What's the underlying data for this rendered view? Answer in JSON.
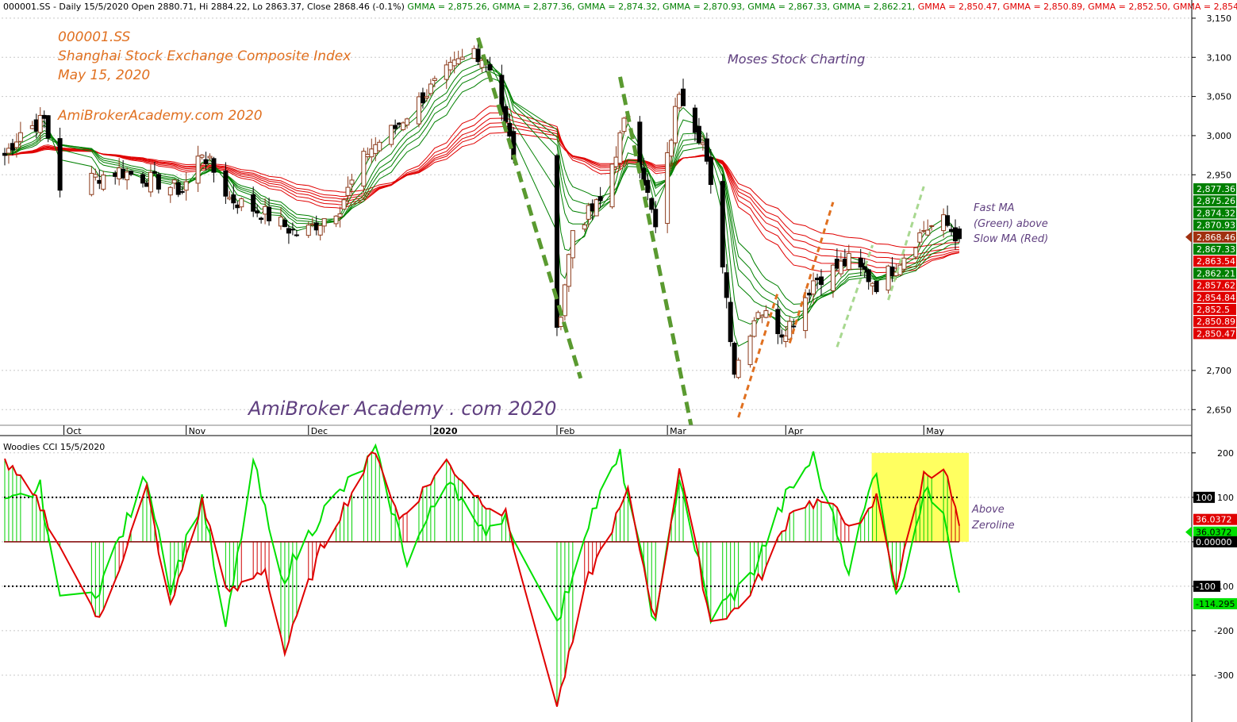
{
  "header": {
    "symbol_line": "000001.SS - Daily 15/5/2020 Open 2880.71, Hi 2884.22, Lo 2863.37, Close 2868.46 (-0.1%)",
    "gmma_items": [
      {
        "text": "GMMA = 2,875.26,",
        "color": "#008000"
      },
      {
        "text": "GMMA = 2,877.36,",
        "color": "#008000"
      },
      {
        "text": "GMMA = 2,874.32,",
        "color": "#008000"
      },
      {
        "text": "GMMA = 2,870.93,",
        "color": "#008000"
      },
      {
        "text": "GMMA = 2,867.33,",
        "color": "#008000"
      },
      {
        "text": "GMMA = 2,862.21,",
        "color": "#008000"
      },
      {
        "text": "GMMA = 2,850.47,",
        "color": "#e00000"
      },
      {
        "text": "GMMA = 2,850.89,",
        "color": "#e00000"
      },
      {
        "text": "GMMA = 2,852.50,",
        "color": "#e00000"
      },
      {
        "text": "GMMA = 2,854",
        "color": "#e00000"
      }
    ],
    "cci_title": "Woodies CCI  15/5/2020"
  },
  "annotations": {
    "ticker": "000001.SS",
    "index_name": "Shanghai Stock Exchange Composite Index",
    "date": "May 15, 2020",
    "site": "AmiBrokerAcademy.com  2020",
    "moses": "Moses Stock Charting",
    "watermark": "AmiBroker Academy . com  2020",
    "fast_ma_lines": [
      "Fast MA",
      "(Green) above",
      "Slow MA (Red)"
    ],
    "zeroline_lines": [
      "Above",
      "Zeroline"
    ]
  },
  "colors": {
    "up_candle": "#8b3a1a",
    "down_candle": "#000000",
    "fast_ma": "#008000",
    "slow_ma": "#e00000",
    "cci_line": "#e00000",
    "turbo_line": "#00e000",
    "annotation_orange": "#e07020",
    "annotation_purple": "#604080",
    "highlight": "#ffff44"
  },
  "chart_data": [
    {
      "type": "candlestick",
      "title": "000001.SS - Daily 15/5/2020",
      "x_labels": [
        "Oct",
        "Nov",
        "Dec",
        "2020",
        "Feb",
        "Mar",
        "Apr",
        "May"
      ],
      "y_ticks": [
        3150,
        3100,
        3050,
        3000,
        2950,
        2700,
        2650
      ],
      "ylim": [
        2630,
        3155
      ],
      "grid": true,
      "last_bar": {
        "open": 2880.71,
        "high": 2884.22,
        "low": 2863.37,
        "close": 2868.46
      },
      "price_tags": [
        {
          "label": "2,877.36",
          "value": 2877.36,
          "color": "#008000"
        },
        {
          "label": "2,875.26",
          "value": 2875.26,
          "color": "#008000"
        },
        {
          "label": "2,874.32",
          "value": 2874.32,
          "color": "#008000"
        },
        {
          "label": "2,870.93",
          "value": 2870.93,
          "color": "#008000"
        },
        {
          "label": "2,868.46",
          "value": 2868.46,
          "color": "#a03010"
        },
        {
          "label": "2,867.33",
          "value": 2867.33,
          "color": "#008000"
        },
        {
          "label": "2,863.54",
          "value": 2863.54,
          "color": "#e00000"
        },
        {
          "label": "2,862.21",
          "value": 2862.21,
          "color": "#008000"
        },
        {
          "label": "2,857.62",
          "value": 2857.62,
          "color": "#e00000"
        },
        {
          "label": "2,854.84",
          "value": 2854.84,
          "color": "#e00000"
        },
        {
          "label": "2,852.5",
          "value": 2852.5,
          "color": "#e00000"
        },
        {
          "label": "2,850.89",
          "value": 2850.89,
          "color": "#e00000"
        },
        {
          "label": "2,850.47",
          "value": 2850.47,
          "color": "#e00000"
        }
      ],
      "close_path": [
        [
          "2019-09-16",
          2975
        ],
        [
          "2019-09-20",
          3005
        ],
        [
          "2019-09-26",
          3020
        ],
        [
          "2019-09-30",
          2935
        ],
        [
          "2019-10-15",
          2955
        ],
        [
          "2019-10-22",
          2945
        ],
        [
          "2019-10-31",
          2930
        ],
        [
          "2019-11-05",
          2980
        ],
        [
          "2019-11-12",
          2920
        ],
        [
          "2019-11-21",
          2900
        ],
        [
          "2019-11-29",
          2875
        ],
        [
          "2019-12-02",
          2880
        ],
        [
          "2019-12-10",
          2910
        ],
        [
          "2019-12-17",
          2980
        ],
        [
          "2019-12-24",
          3010
        ],
        [
          "2019-12-31",
          3050
        ],
        [
          "2020-01-06",
          3080
        ],
        [
          "2020-01-13",
          3110
        ],
        [
          "2020-01-17",
          3090
        ],
        [
          "2020-01-23",
          2975
        ],
        [
          "2020-02-03",
          2745
        ],
        [
          "2020-02-07",
          2880
        ],
        [
          "2020-02-14",
          2915
        ],
        [
          "2020-02-21",
          3030
        ],
        [
          "2020-02-28",
          2880
        ],
        [
          "2020-03-05",
          3060
        ],
        [
          "2020-03-11",
          2990
        ],
        [
          "2020-03-16",
          2840
        ],
        [
          "2020-03-19",
          2700
        ],
        [
          "2020-03-25",
          2780
        ],
        [
          "2020-03-31",
          2750
        ],
        [
          "2020-04-03",
          2765
        ],
        [
          "2020-04-08",
          2815
        ],
        [
          "2020-04-17",
          2840
        ],
        [
          "2020-04-24",
          2810
        ],
        [
          "2020-04-29",
          2835
        ],
        [
          "2020-05-06",
          2880
        ],
        [
          "2020-05-11",
          2890
        ],
        [
          "2020-05-15",
          2868.46
        ]
      ],
      "series": [
        {
          "name": "GMMA",
          "group": "short",
          "color": "#008000",
          "last": [
            2875.26,
            2877.36,
            2874.32,
            2870.93,
            2867.33,
            2862.21
          ]
        },
        {
          "name": "GMMA",
          "group": "long",
          "color": "#e00000",
          "last": [
            2850.47,
            2850.89,
            2852.5,
            2854.84,
            2857.62,
            2863.54
          ]
        }
      ]
    },
    {
      "type": "line",
      "title": "Woodies CCI  15/5/2020",
      "y_ticks": [
        200,
        100,
        0,
        -100,
        -200,
        -300
      ],
      "ylim": [
        -400,
        230
      ],
      "reference_lines": [
        100,
        0,
        -100
      ],
      "value_tags": [
        {
          "label": "100",
          "value": 100,
          "color": "#000000"
        },
        {
          "label": "36.0372",
          "value": 36.0372,
          "color": "#e00000"
        },
        {
          "label": "36.0372",
          "value": 36.0372,
          "color": "#00e000"
        },
        {
          "label": "0.00000",
          "value": 0,
          "color": "#000000"
        },
        {
          "label": "-100",
          "value": -100,
          "color": "#000000"
        },
        {
          "label": "-114.295",
          "value": -114.295,
          "color": "#00e000"
        }
      ],
      "series": [
        {
          "name": "CCI",
          "color": "#e00000",
          "points": [
            [
              "2019-09-16",
              180
            ],
            [
              "2019-09-25",
              80
            ],
            [
              "2019-10-10",
              -180
            ],
            [
              "2019-10-22",
              120
            ],
            [
              "2019-10-28",
              -150
            ],
            [
              "2019-11-05",
              90
            ],
            [
              "2019-11-12",
              -120
            ],
            [
              "2019-11-21",
              -60
            ],
            [
              "2019-11-26",
              -250
            ],
            [
              "2019-12-05",
              -20
            ],
            [
              "2019-12-19",
              210
            ],
            [
              "2019-12-25",
              50
            ],
            [
              "2020-01-06",
              180
            ],
            [
              "2020-01-14",
              100
            ],
            [
              "2020-01-21",
              60
            ],
            [
              "2020-02-03",
              -370
            ],
            [
              "2020-02-11",
              -80
            ],
            [
              "2020-02-21",
              110
            ],
            [
              "2020-02-28",
              -180
            ],
            [
              "2020-03-05",
              170
            ],
            [
              "2020-03-13",
              -180
            ],
            [
              "2020-03-20",
              -150
            ],
            [
              "2020-03-27",
              -60
            ],
            [
              "2020-04-03",
              80
            ],
            [
              "2020-04-10",
              90
            ],
            [
              "2020-04-20",
              30
            ],
            [
              "2020-04-24",
              100
            ],
            [
              "2020-04-29",
              -100
            ],
            [
              "2020-05-06",
              150
            ],
            [
              "2020-05-11",
              170
            ],
            [
              "2020-05-15",
              36.0372
            ]
          ]
        },
        {
          "name": "Turbo CCI",
          "color": "#00e000",
          "points": [
            [
              "2019-09-16",
              80
            ],
            [
              "2019-09-25",
              120
            ],
            [
              "2019-10-01",
              -190
            ],
            [
              "2019-10-10",
              -100
            ],
            [
              "2019-10-22",
              150
            ],
            [
              "2019-10-28",
              -100
            ],
            [
              "2019-11-05",
              100
            ],
            [
              "2019-11-11",
              -200
            ],
            [
              "2019-11-18",
              180
            ],
            [
              "2019-11-25",
              -90
            ],
            [
              "2019-12-05",
              60
            ],
            [
              "2019-12-19",
              200
            ],
            [
              "2019-12-27",
              -40
            ],
            [
              "2020-01-07",
              150
            ],
            [
              "2020-01-14",
              20
            ],
            [
              "2020-01-21",
              60
            ],
            [
              "2020-02-03",
              -190
            ],
            [
              "2020-02-11",
              50
            ],
            [
              "2020-02-19",
              190
            ],
            [
              "2020-02-28",
              -190
            ],
            [
              "2020-03-05",
              150
            ],
            [
              "2020-03-13",
              -170
            ],
            [
              "2020-03-23",
              -80
            ],
            [
              "2020-04-01",
              100
            ],
            [
              "2020-04-08",
              190
            ],
            [
              "2020-04-17",
              -60
            ],
            [
              "2020-04-24",
              170
            ],
            [
              "2020-04-29",
              -130
            ],
            [
              "2020-05-06",
              110
            ],
            [
              "2020-05-11",
              80
            ],
            [
              "2020-05-15",
              -114.295
            ]
          ]
        }
      ]
    }
  ]
}
